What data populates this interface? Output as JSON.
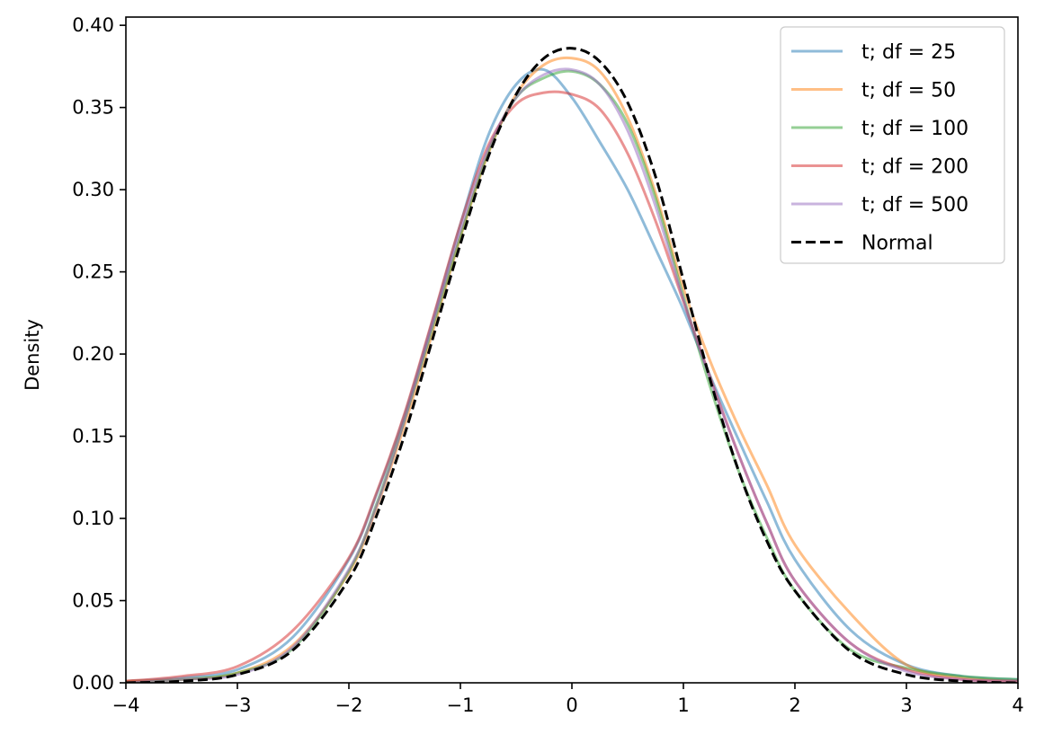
{
  "chart_data": {
    "type": "line",
    "title": "",
    "xlabel": "",
    "ylabel": "Density",
    "xlim": [
      -4,
      4
    ],
    "ylim": [
      0,
      0.405
    ],
    "xticks": [
      -4,
      -3,
      -2,
      -1,
      0,
      1,
      2,
      3,
      4
    ],
    "xtick_labels": [
      "−4",
      "−3",
      "−2",
      "−1",
      "0",
      "1",
      "2",
      "3",
      "4"
    ],
    "yticks": [
      0,
      0.05,
      0.1,
      0.15,
      0.2,
      0.25,
      0.3,
      0.35,
      0.4
    ],
    "ytick_labels": [
      "0.00",
      "0.05",
      "0.10",
      "0.15",
      "0.20",
      "0.25",
      "0.30",
      "0.35",
      "0.40"
    ],
    "grid": false,
    "legend_position": "top-right",
    "x": [
      -4,
      -3.5,
      -3,
      -2.5,
      -2,
      -1.75,
      -1.5,
      -1.25,
      -1,
      -0.75,
      -0.5,
      -0.25,
      0,
      0.25,
      0.5,
      0.75,
      1,
      1.25,
      1.5,
      1.75,
      2,
      2.5,
      3,
      3.5,
      4
    ],
    "series": [
      {
        "name": "t; df = 25",
        "color": "#1f77b4",
        "opacity": 0.5,
        "dashed": false,
        "values": [
          0.001,
          0.003,
          0.008,
          0.028,
          0.075,
          0.115,
          0.163,
          0.22,
          0.279,
          0.333,
          0.364,
          0.373,
          0.356,
          0.329,
          0.3,
          0.264,
          0.227,
          0.185,
          0.147,
          0.11,
          0.075,
          0.032,
          0.011,
          0.004,
          0.002
        ]
      },
      {
        "name": "t; df = 50",
        "color": "#ff7f0e",
        "opacity": 0.5,
        "dashed": false,
        "values": [
          0.001,
          0.002,
          0.006,
          0.023,
          0.067,
          0.107,
          0.157,
          0.213,
          0.271,
          0.322,
          0.358,
          0.376,
          0.38,
          0.372,
          0.344,
          0.298,
          0.24,
          0.194,
          0.155,
          0.12,
          0.084,
          0.042,
          0.011,
          0.003,
          0.001
        ]
      },
      {
        "name": "t; df = 100",
        "color": "#2ca02c",
        "opacity": 0.5,
        "dashed": false,
        "values": [
          0.0,
          0.002,
          0.006,
          0.021,
          0.068,
          0.109,
          0.16,
          0.216,
          0.272,
          0.323,
          0.356,
          0.368,
          0.372,
          0.364,
          0.34,
          0.295,
          0.235,
          0.178,
          0.128,
          0.088,
          0.056,
          0.02,
          0.009,
          0.004,
          0.002
        ]
      },
      {
        "name": "t; df = 200",
        "color": "#d62728",
        "opacity": 0.5,
        "dashed": false,
        "values": [
          0.001,
          0.004,
          0.01,
          0.032,
          0.076,
          0.116,
          0.164,
          0.221,
          0.279,
          0.327,
          0.352,
          0.359,
          0.358,
          0.349,
          0.322,
          0.281,
          0.232,
          0.184,
          0.138,
          0.097,
          0.062,
          0.024,
          0.008,
          0.002,
          0.001
        ]
      },
      {
        "name": "t; df = 500",
        "color": "#9467bd",
        "opacity": 0.5,
        "dashed": false,
        "values": [
          0.0,
          0.002,
          0.005,
          0.022,
          0.069,
          0.108,
          0.16,
          0.218,
          0.275,
          0.325,
          0.356,
          0.37,
          0.373,
          0.364,
          0.336,
          0.29,
          0.233,
          0.183,
          0.138,
          0.097,
          0.062,
          0.024,
          0.007,
          0.002,
          0.001
        ]
      },
      {
        "name": "Normal",
        "color": "#000000",
        "opacity": 1,
        "dashed": true,
        "values": [
          0.0,
          0.001,
          0.005,
          0.02,
          0.063,
          0.102,
          0.151,
          0.209,
          0.267,
          0.32,
          0.358,
          0.38,
          0.386,
          0.378,
          0.353,
          0.308,
          0.245,
          0.182,
          0.128,
          0.086,
          0.056,
          0.019,
          0.005,
          0.001,
          0.0
        ]
      }
    ]
  }
}
